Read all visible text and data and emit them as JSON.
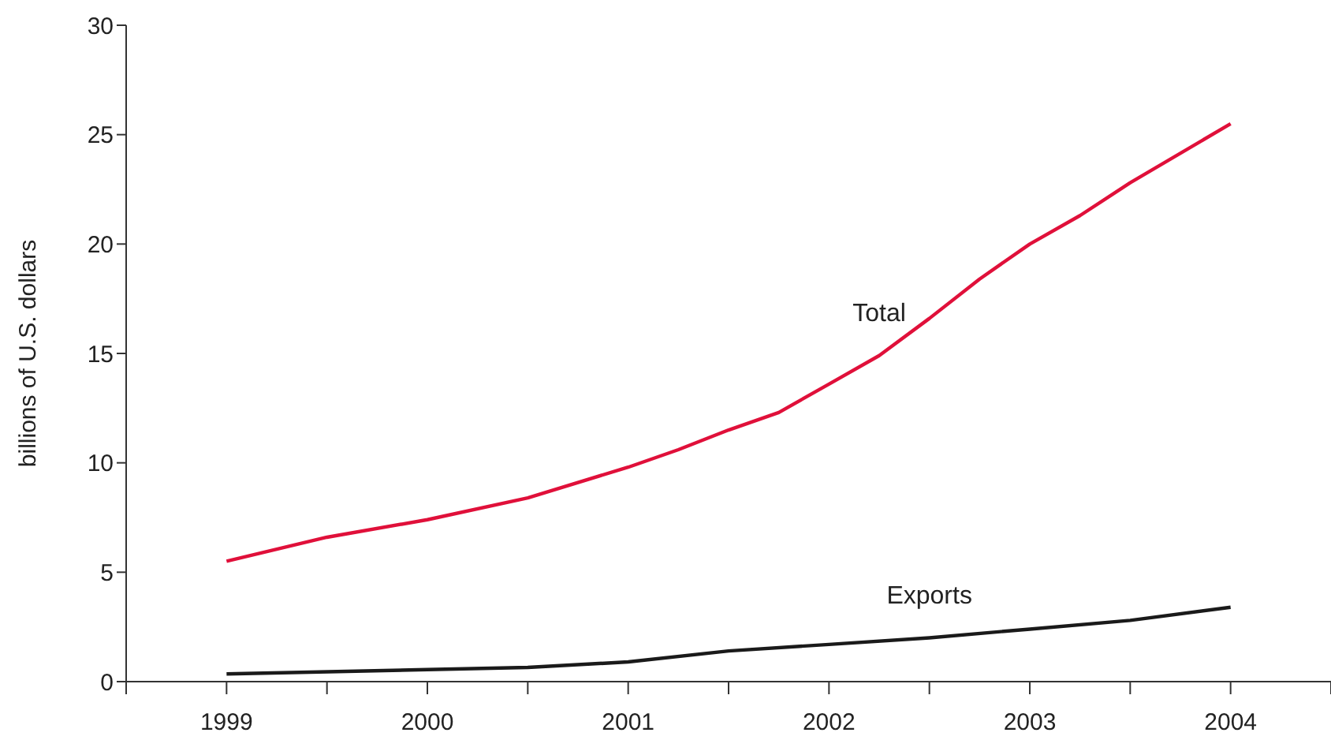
{
  "chart_data": {
    "type": "line",
    "ylabel": "billions of U.S. dollars",
    "xlim": [
      1998.5,
      2004.5
    ],
    "xticks": [
      {
        "value": 1998.5,
        "label": null
      },
      {
        "value": 1999,
        "label": "1999"
      },
      {
        "value": 1999.5,
        "label": null
      },
      {
        "value": 2000,
        "label": "2000"
      },
      {
        "value": 2000.5,
        "label": null
      },
      {
        "value": 2001,
        "label": "2001"
      },
      {
        "value": 2001.5,
        "label": null
      },
      {
        "value": 2002,
        "label": "2002"
      },
      {
        "value": 2002.5,
        "label": null
      },
      {
        "value": 2003,
        "label": "2003"
      },
      {
        "value": 2003.5,
        "label": null
      },
      {
        "value": 2004,
        "label": "2004"
      },
      {
        "value": 2004.5,
        "label": null
      }
    ],
    "ylim": [
      0,
      30
    ],
    "yticks": [
      0,
      5,
      10,
      15,
      20,
      25,
      30
    ],
    "grid": false,
    "legend": false,
    "marker": "none",
    "line_style": "solid",
    "series": [
      {
        "name": "Total",
        "color": "#e0103a",
        "x": [
          1999,
          1999.5,
          2000,
          2000.5,
          2001,
          2001.25,
          2001.5,
          2001.75,
          2002,
          2002.25,
          2002.5,
          2002.75,
          2003,
          2003.25,
          2003.5,
          2004
        ],
        "values": [
          5.5,
          6.6,
          7.4,
          8.4,
          9.8,
          10.6,
          11.5,
          12.3,
          13.6,
          14.9,
          16.6,
          18.4,
          20.0,
          21.3,
          22.8,
          25.5
        ]
      },
      {
        "name": "Exports",
        "color": "#1a1a1a",
        "x": [
          1999,
          2000,
          2000.5,
          2001,
          2001.5,
          2002,
          2002.5,
          2003,
          2003.5,
          2004
        ],
        "values": [
          0.35,
          0.55,
          0.65,
          0.9,
          1.4,
          1.7,
          2.0,
          2.4,
          2.8,
          3.4
        ]
      }
    ]
  }
}
